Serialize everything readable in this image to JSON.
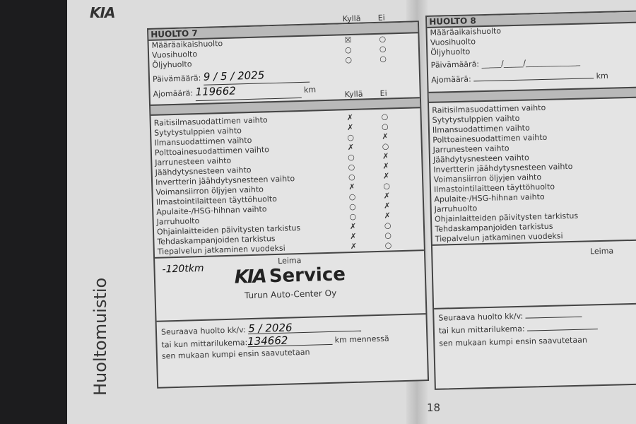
{
  "booklet": {
    "logo": "KIA",
    "side_title": "Huoltomuistio",
    "page_number": "18"
  },
  "labels": {
    "yes": "Kyllä",
    "no": "Ei",
    "date": "Päivämäärä:",
    "mileage": "Ajomäärä:",
    "km": "km",
    "stamp": "Leima",
    "next_service": "Seuraava huolto kk/v:",
    "or_when": "tai kun mittarilukema:",
    "km_by": "km mennessä",
    "whichever": "sen mukaan kumpi ensin saavutetaan"
  },
  "service7": {
    "title": "HUOLTO 7",
    "types": [
      {
        "label": "Määräaikaishuolto",
        "yes": true,
        "no": false
      },
      {
        "label": "Vuosihuolto",
        "yes": false,
        "no": false
      },
      {
        "label": "Öljyhuolto",
        "yes": false,
        "no": false
      }
    ],
    "date": "9 / 5 / 2025",
    "mileage": "119662",
    "items": [
      {
        "label": "Raitisilmasuodattimen vaihto",
        "yes": true
      },
      {
        "label": "Sytytystulppien vaihto",
        "yes": true
      },
      {
        "label": "Ilmansuodattimen vaihto",
        "yes": false
      },
      {
        "label": "Polttoainesuodattimen vaihto",
        "yes": true
      },
      {
        "label": "Jarrunesteen vaihto",
        "yes": false
      },
      {
        "label": "Jäähdytysnesteen vaihto",
        "yes": false
      },
      {
        "label": "Invertterin jäähdytysnesteen vaihto",
        "yes": false
      },
      {
        "label": "Voimansiirron öljyjen vaihto",
        "yes": true
      },
      {
        "label": "Ilmastointilaitteen täyttöhuolto",
        "yes": false
      },
      {
        "label": "Apulaite-/HSG-hihnan vaihto",
        "yes": false
      },
      {
        "label": "Jarruhuolto",
        "yes": false
      },
      {
        "label": "Ohjainlaitteiden päivitysten tarkistus",
        "yes": true
      },
      {
        "label": "Tehdaskampanjoiden tarkistus",
        "yes": true
      },
      {
        "label": "Tiepalvelun jatkaminen vuodeksi",
        "yes": true
      }
    ],
    "handwritten_note": "-120tkm",
    "stamp_brand": "Service",
    "stamp_company": "Turun Auto-Center Oy",
    "next_date": "5 / 2026",
    "next_mileage": "134662"
  },
  "service8": {
    "title": "HUOLTO 8",
    "types": [
      "Määräaikaishuolto",
      "Vuosihuolto",
      "Öljyhuolto"
    ],
    "date_blank": "_____/_____/______________",
    "items": [
      "Raitisilmasuodattimen vaihto",
      "Sytytystulppien vaihto",
      "Ilmansuodattimen vaihto",
      "Polttoainesuodattimen vaihto",
      "Jarrunesteen vaihto",
      "Jäähdytysnesteen vaihto",
      "Invertterin jäähdytysnesteen vaihto",
      "Voimansiirron öljyjen vaihto",
      "Ilmastointilaitteen täyttöhuolto",
      "Apulaite-/HSG-hihnan vaihto",
      "Jarruhuolto",
      "Ohjainlaitteiden päivitysten tarkistus",
      "Tehdaskampanjoiden tarkistus",
      "Tiepalvelun jatkaminen vuodeksi"
    ]
  }
}
